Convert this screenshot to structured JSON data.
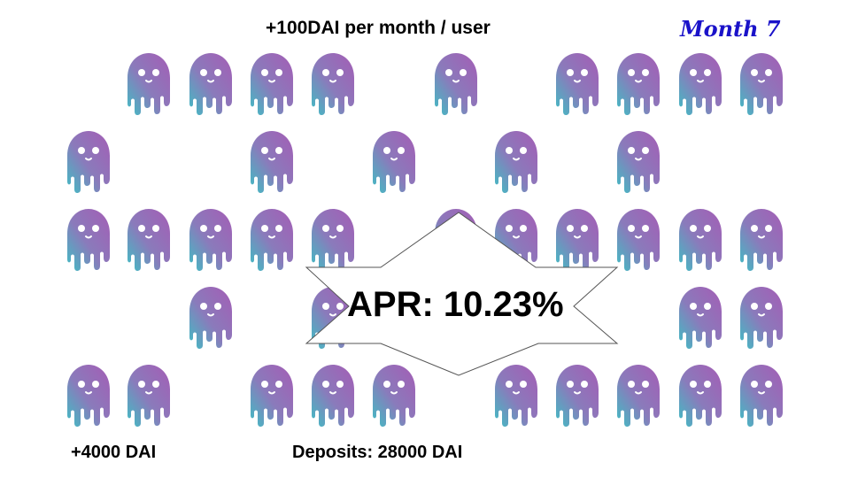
{
  "header": {
    "rate_text": "+100DAI per month / user",
    "month_text": "Month 7"
  },
  "footer": {
    "income_text": "+4000 DAI",
    "deposits_text": "Deposits: 28000 DAI"
  },
  "burst": {
    "apr_text": "APR: 10.23%"
  },
  "ghost_colors": {
    "top": "#a45db5",
    "bottom": "#3fbfc4"
  },
  "ghost_rows": [
    [
      0,
      1,
      1,
      1,
      1,
      0,
      1,
      0,
      1,
      1,
      1,
      1
    ],
    [
      1,
      0,
      0,
      1,
      0,
      1,
      0,
      1,
      0,
      1,
      0,
      0
    ],
    [
      1,
      1,
      1,
      1,
      1,
      0,
      1,
      1,
      1,
      1,
      1,
      1
    ],
    [
      0,
      0,
      1,
      0,
      1,
      0,
      0,
      0,
      0,
      0,
      1,
      1
    ],
    [
      1,
      1,
      0,
      1,
      1,
      1,
      0,
      1,
      1,
      1,
      1,
      1
    ]
  ]
}
